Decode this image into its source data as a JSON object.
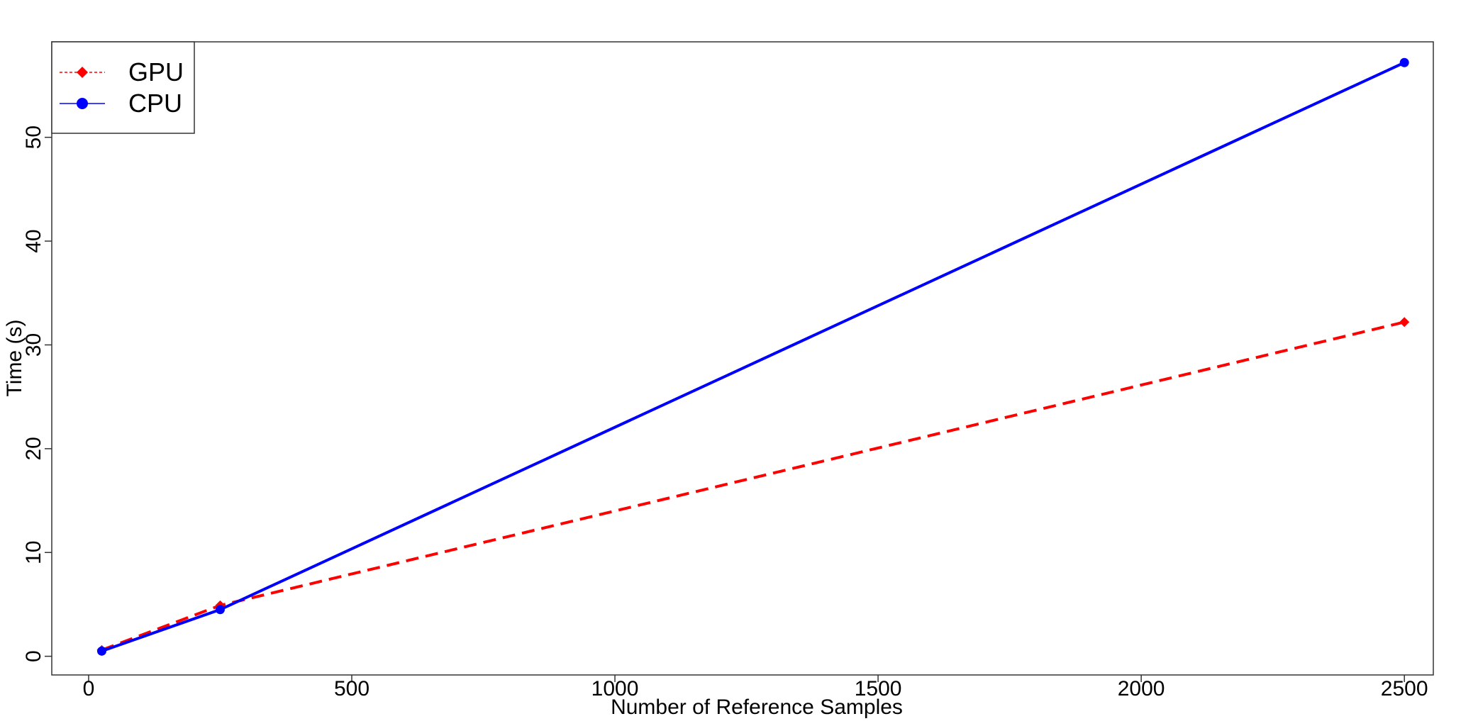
{
  "chart_data": {
    "type": "line",
    "title": "",
    "xlabel": "Number of Reference Samples",
    "ylabel": "Time (s)",
    "xlim": [
      -70,
      2555
    ],
    "ylim": [
      -1.8,
      59.2
    ],
    "xticks": [
      0,
      500,
      1000,
      1500,
      2000,
      2500
    ],
    "yticks": [
      0,
      10,
      20,
      30,
      40,
      50
    ],
    "grid": false,
    "legend": {
      "position": "top-left"
    },
    "series": [
      {
        "name": "GPU",
        "color": "#ff0000",
        "line_style": "dashed",
        "marker": "diamond",
        "x": [
          25,
          250,
          2500
        ],
        "y": [
          0.6,
          4.9,
          32.2
        ]
      },
      {
        "name": "CPU",
        "color": "#0000ff",
        "line_style": "solid",
        "marker": "circle",
        "x": [
          25,
          250,
          2500
        ],
        "y": [
          0.5,
          4.5,
          57.2
        ]
      }
    ]
  }
}
